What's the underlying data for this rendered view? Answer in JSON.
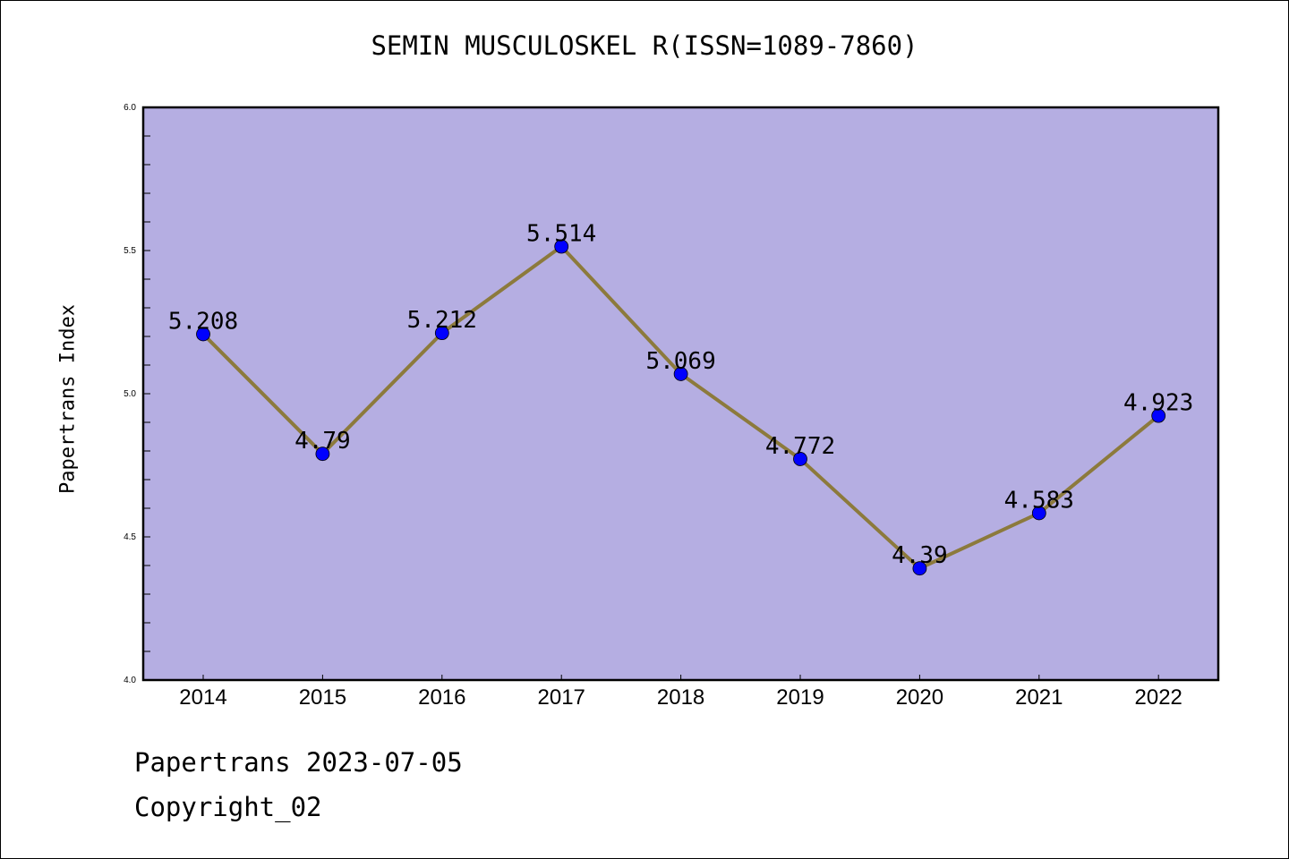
{
  "chart_data": {
    "type": "line",
    "title": "SEMIN MUSCULOSKEL R(ISSN=1089-7860)",
    "xlabel": "",
    "ylabel": "Papertrans Index",
    "categories": [
      "2014",
      "2015",
      "2016",
      "2017",
      "2018",
      "2019",
      "2020",
      "2021",
      "2022"
    ],
    "values": [
      5.208,
      4.79,
      5.212,
      5.514,
      5.069,
      4.772,
      4.39,
      4.583,
      4.923
    ],
    "data_labels": [
      "5.208",
      "4.79",
      "5.212",
      "5.514",
      "5.069",
      "4.772",
      "4.39",
      "4.583",
      "4.923"
    ],
    "ylim": [
      4.0,
      6.0
    ],
    "yticks": [
      "4.0",
      "4.5",
      "5.0",
      "5.5",
      "6.0"
    ],
    "grid": false,
    "colors": {
      "plot_background": "#b5aee2",
      "line": "#8c7a3c",
      "marker": "#0000ff"
    }
  },
  "footer": {
    "line1": "Papertrans 2023-07-05",
    "line2": "Copyright_02"
  }
}
